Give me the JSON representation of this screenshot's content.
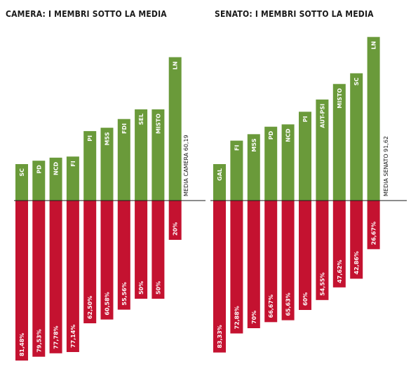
{
  "colors": {
    "above": "#6a9a3a",
    "below": "#c41230",
    "text": "#1a1a1a",
    "baseline": "#1a1a1a"
  },
  "chart_data": [
    {
      "type": "bar",
      "title": "CAMERA: I MEMBRI SOTTO LA MEDIA",
      "average_label": "MEDIA CAMERA 60,19",
      "categories": [
        "SC",
        "PD",
        "NCD",
        "FI",
        "PI",
        "M5S",
        "FDI",
        "SEL",
        "MISTO",
        "LN"
      ],
      "values": [
        81.48,
        79.53,
        77.78,
        77.14,
        62.5,
        60.58,
        55.56,
        50,
        50,
        20
      ],
      "value_labels": [
        "81,48%",
        "79,53%",
        "77,78%",
        "77,14%",
        "62,50%",
        "60,58%",
        "55,56%",
        "50%",
        "50%",
        "20%"
      ],
      "series": [
        {
          "values": [
            81.48,
            79.53,
            77.78,
            77.14,
            62.5,
            60.58,
            55.56,
            50,
            50,
            20
          ]
        }
      ]
    },
    {
      "type": "bar",
      "title": "SENATO: I MEMBRI SOTTO LA MEDIA",
      "average_label": "MEDIA SENATO 91,62",
      "categories": [
        "GAL",
        "FI",
        "M5S",
        "PD",
        "NCD",
        "PI",
        "AUT-PSI",
        "MISTO",
        "SC",
        "LN"
      ],
      "values": [
        83.33,
        72.88,
        70,
        66.67,
        65.63,
        60,
        54.55,
        47.62,
        42.86,
        26.67
      ],
      "value_labels": [
        "83,33%",
        "72,88%",
        "70%",
        "66,67%",
        "65,63%",
        "60%",
        "54,55%",
        "47,62%",
        "42,86%",
        "26,67%"
      ],
      "series": [
        {
          "values": [
            83.33,
            72.88,
            70,
            66.67,
            65.63,
            60,
            54.55,
            47.62,
            42.86,
            26.67
          ]
        }
      ]
    }
  ]
}
